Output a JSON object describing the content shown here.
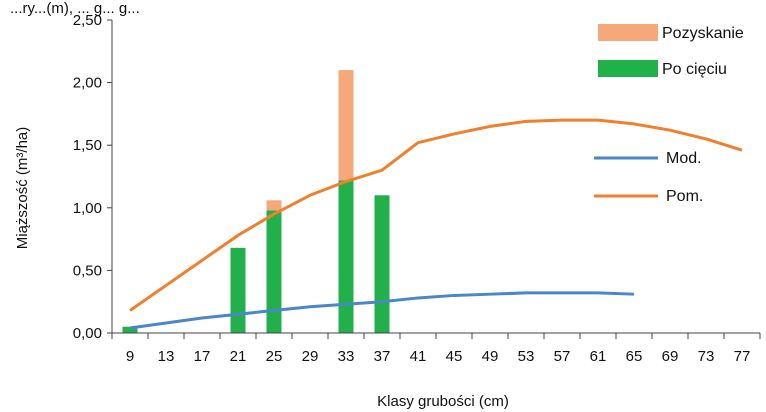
{
  "chart_data": {
    "type": "bar",
    "title_fragment": "...ry...(m), ... g... g...",
    "xlabel": "Klasy grubości (cm)",
    "ylabel": "Miąższość (m³/ha)",
    "ylim": [
      0,
      2.5
    ],
    "ytick_labels": [
      "0,00",
      "0,50",
      "1,00",
      "1,50",
      "2,00",
      "2,50"
    ],
    "categories": [
      "9",
      "13",
      "17",
      "21",
      "25",
      "29",
      "33",
      "37",
      "41",
      "45",
      "49",
      "53",
      "57",
      "61",
      "65",
      "69",
      "73",
      "77"
    ],
    "bar_series": [
      {
        "name": "Po cięciu",
        "color": "#22b04b",
        "values": [
          0.05,
          null,
          null,
          0.68,
          0.98,
          null,
          1.22,
          1.1,
          null,
          null,
          null,
          null,
          null,
          null,
          null,
          null,
          null,
          null
        ]
      },
      {
        "name": "Pozyskanie",
        "color": "#f5a97a",
        "values": [
          0,
          null,
          null,
          0,
          0.08,
          null,
          0.88,
          0,
          null,
          null,
          null,
          null,
          null,
          null,
          null,
          null,
          null,
          null
        ]
      }
    ],
    "line_series": [
      {
        "name": "Mod.",
        "color": "#4a86c8",
        "values": [
          0.04,
          0.08,
          0.12,
          0.15,
          0.18,
          0.21,
          0.23,
          0.25,
          0.28,
          0.3,
          0.31,
          0.32,
          0.32,
          0.32,
          0.31,
          null,
          null,
          null
        ]
      },
      {
        "name": "Pom.",
        "color": "#f07f2e",
        "values": [
          0.18,
          0.38,
          0.58,
          0.78,
          0.95,
          1.1,
          1.21,
          1.3,
          1.52,
          1.59,
          1.65,
          1.69,
          1.7,
          1.7,
          1.67,
          1.62,
          1.55,
          1.46
        ]
      }
    ],
    "legend": {
      "placement": "right",
      "entries": [
        {
          "label": "Pozyskanie",
          "color": "#f5a97a",
          "kind": "bar"
        },
        {
          "label": "Po cięciu",
          "color": "#22b04b",
          "kind": "bar"
        },
        {
          "label": "Mod.",
          "color": "#4a86c8",
          "kind": "line"
        },
        {
          "label": "Pom.",
          "color": "#f07f2e",
          "kind": "line"
        }
      ]
    },
    "grid": false
  }
}
